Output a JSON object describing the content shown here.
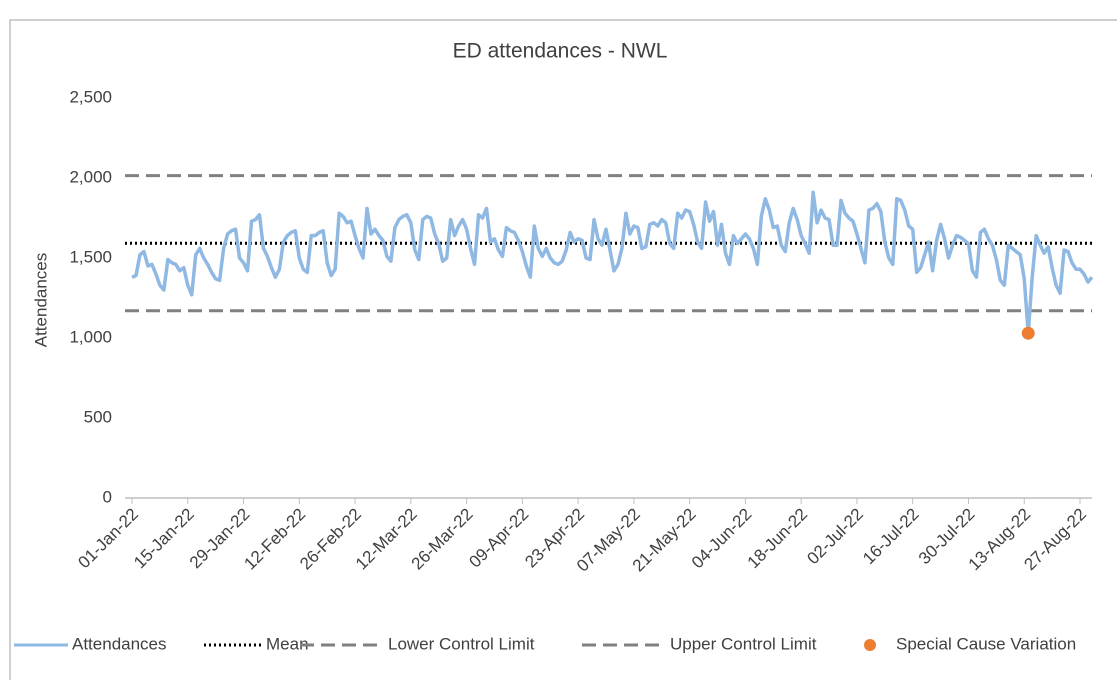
{
  "chart_data": {
    "type": "line",
    "title": "ED attendances - NWL",
    "y_label": "Attendances",
    "ylim": [
      0,
      2500
    ],
    "yticks": [
      0,
      500,
      {
        "value": 1000,
        "label": "1,000"
      },
      {
        "value": 1500,
        "label": "1,500"
      },
      {
        "value": 2000,
        "label": "2,000"
      },
      {
        "value": 2500,
        "label": "2,500"
      }
    ],
    "categories": [
      "01-Jan-22",
      null,
      null,
      null,
      null,
      null,
      null,
      null,
      null,
      null,
      null,
      null,
      null,
      null,
      "15-Jan-22",
      null,
      null,
      null,
      null,
      null,
      null,
      null,
      null,
      null,
      null,
      null,
      null,
      null,
      "29-Jan-22",
      null,
      null,
      null,
      null,
      null,
      null,
      null,
      null,
      null,
      null,
      null,
      null,
      null,
      "12-Feb-22",
      null,
      null,
      null,
      null,
      null,
      null,
      null,
      null,
      null,
      null,
      null,
      null,
      null,
      "26-Feb-22",
      null,
      null,
      null,
      null,
      null,
      null,
      null,
      null,
      null,
      null,
      null,
      null,
      null,
      "12-Mar-22",
      null,
      null,
      null,
      null,
      null,
      null,
      null,
      null,
      null,
      null,
      null,
      null,
      null,
      "26-Mar-22",
      null,
      null,
      null,
      null,
      null,
      null,
      null,
      null,
      null,
      null,
      null,
      null,
      null,
      "09-Apr-22",
      null,
      null,
      null,
      null,
      null,
      null,
      null,
      null,
      null,
      null,
      null,
      null,
      null,
      "23-Apr-22",
      null,
      null,
      null,
      null,
      null,
      null,
      null,
      null,
      null,
      null,
      null,
      null,
      null,
      "07-May-22",
      null,
      null,
      null,
      null,
      null,
      null,
      null,
      null,
      null,
      null,
      null,
      null,
      null,
      "21-May-22",
      null,
      null,
      null,
      null,
      null,
      null,
      null,
      null,
      null,
      null,
      null,
      null,
      null,
      "04-Jun-22",
      null,
      null,
      null,
      null,
      null,
      null,
      null,
      null,
      null,
      null,
      null,
      null,
      null,
      "18-Jun-22",
      null,
      null,
      null,
      null,
      null,
      null,
      null,
      null,
      null,
      null,
      null,
      null,
      null,
      "02-Jul-22",
      null,
      null,
      null,
      null,
      null,
      null,
      null,
      null,
      null,
      null,
      null,
      null,
      null,
      "16-Jul-22",
      null,
      null,
      null,
      null,
      null,
      null,
      null,
      null,
      null,
      null,
      null,
      null,
      null,
      "30-Jul-22",
      null,
      null,
      null,
      null,
      null,
      null,
      null,
      null,
      null,
      null,
      null,
      null,
      null,
      "13-Aug-22",
      null,
      null,
      null,
      null,
      null,
      null,
      null,
      null,
      null,
      null,
      null,
      null,
      null,
      "27-Aug-22",
      null,
      null,
      null
    ],
    "series": [
      {
        "name": "Attendances",
        "kind": "line",
        "color": "#8fb8e3",
        "values": [
          1380,
          1390,
          1520,
          1540,
          1450,
          1460,
          1400,
          1330,
          1300,
          1490,
          1470,
          1460,
          1420,
          1440,
          1330,
          1270,
          1520,
          1560,
          1500,
          1460,
          1410,
          1370,
          1360,
          1560,
          1650,
          1670,
          1680,
          1500,
          1470,
          1420,
          1730,
          1740,
          1770,
          1560,
          1510,
          1440,
          1380,
          1430,
          1600,
          1640,
          1660,
          1670,
          1500,
          1430,
          1410,
          1640,
          1640,
          1660,
          1670,
          1470,
          1390,
          1430,
          1780,
          1760,
          1720,
          1730,
          1640,
          1560,
          1500,
          1810,
          1650,
          1680,
          1640,
          1610,
          1510,
          1480,
          1690,
          1740,
          1760,
          1770,
          1720,
          1550,
          1490,
          1740,
          1760,
          1750,
          1650,
          1590,
          1480,
          1500,
          1740,
          1640,
          1700,
          1740,
          1680,
          1560,
          1460,
          1770,
          1750,
          1810,
          1600,
          1620,
          1550,
          1510,
          1690,
          1670,
          1660,
          1610,
          1540,
          1450,
          1380,
          1700,
          1560,
          1510,
          1560,
          1500,
          1470,
          1460,
          1480,
          1550,
          1660,
          1600,
          1620,
          1610,
          1500,
          1490,
          1740,
          1620,
          1580,
          1680,
          1550,
          1420,
          1460,
          1560,
          1780,
          1650,
          1700,
          1690,
          1560,
          1570,
          1710,
          1720,
          1700,
          1740,
          1720,
          1590,
          1560,
          1780,
          1750,
          1800,
          1790,
          1710,
          1600,
          1560,
          1850,
          1730,
          1790,
          1580,
          1710,
          1530,
          1460,
          1640,
          1590,
          1620,
          1650,
          1620,
          1560,
          1460,
          1760,
          1870,
          1800,
          1690,
          1700,
          1580,
          1540,
          1720,
          1810,
          1740,
          1640,
          1590,
          1530,
          1910,
          1720,
          1800,
          1750,
          1740,
          1580,
          1580,
          1860,
          1780,
          1750,
          1730,
          1650,
          1560,
          1470,
          1800,
          1810,
          1840,
          1790,
          1600,
          1500,
          1460,
          1870,
          1860,
          1800,
          1700,
          1680,
          1410,
          1440,
          1520,
          1600,
          1420,
          1610,
          1710,
          1620,
          1500,
          1580,
          1640,
          1630,
          1610,
          1590,
          1420,
          1380,
          1660,
          1680,
          1620,
          1580,
          1490,
          1360,
          1330,
          1580,
          1560,
          1540,
          1520,
          1370,
          1030,
          1380,
          1640,
          1580,
          1530,
          1570,
          1440,
          1330,
          1280,
          1550,
          1540,
          1470,
          1430,
          1430,
          1400,
          1350,
          1380
        ]
      },
      {
        "name": "Mean",
        "kind": "reference",
        "style": "dotted",
        "color": "#000000",
        "value": 1592
      },
      {
        "name": "Lower Control Limit",
        "kind": "reference",
        "style": "dashed",
        "color": "#808080",
        "value": 1170
      },
      {
        "name": "Upper Control Limit",
        "kind": "reference",
        "style": "dashed",
        "color": "#808080",
        "value": 2015
      },
      {
        "name": "Special Cause Variation",
        "kind": "point",
        "color": "#ed7d31",
        "values": [
          null,
          null,
          null,
          null,
          null,
          null,
          null,
          null,
          null,
          null,
          null,
          null,
          null,
          null,
          null,
          null,
          null,
          null,
          null,
          null,
          null,
          null,
          null,
          null,
          null,
          null,
          null,
          null,
          null,
          null,
          null,
          null,
          null,
          null,
          null,
          null,
          null,
          null,
          null,
          null,
          null,
          null,
          null,
          null,
          null,
          null,
          null,
          null,
          null,
          null,
          null,
          null,
          null,
          null,
          null,
          null,
          null,
          null,
          null,
          null,
          null,
          null,
          null,
          null,
          null,
          null,
          null,
          null,
          null,
          null,
          null,
          null,
          null,
          null,
          null,
          null,
          null,
          null,
          null,
          null,
          null,
          null,
          null,
          null,
          null,
          null,
          null,
          null,
          null,
          null,
          null,
          null,
          null,
          null,
          null,
          null,
          null,
          null,
          null,
          null,
          null,
          null,
          null,
          null,
          null,
          null,
          null,
          null,
          null,
          null,
          null,
          null,
          null,
          null,
          null,
          null,
          null,
          null,
          null,
          null,
          null,
          null,
          null,
          null,
          null,
          null,
          null,
          null,
          null,
          null,
          null,
          null,
          null,
          null,
          null,
          null,
          null,
          null,
          null,
          null,
          null,
          null,
          null,
          null,
          null,
          null,
          null,
          null,
          null,
          null,
          null,
          null,
          null,
          null,
          null,
          null,
          null,
          null,
          null,
          null,
          null,
          null,
          null,
          null,
          null,
          null,
          null,
          null,
          null,
          null,
          null,
          null,
          null,
          null,
          null,
          null,
          null,
          null,
          null,
          null,
          null,
          null,
          null,
          null,
          null,
          null,
          null,
          null,
          null,
          null,
          null,
          null,
          null,
          null,
          null,
          null,
          null,
          null,
          null,
          null,
          null,
          null,
          null,
          null,
          null,
          null,
          null,
          null,
          null,
          null,
          null,
          null,
          null,
          null,
          null,
          null,
          null,
          null,
          null,
          null,
          null,
          null,
          null,
          null,
          null,
          1030,
          null,
          null,
          null,
          null,
          null,
          null,
          null,
          null,
          null,
          null,
          null,
          null,
          null,
          null,
          null,
          null
        ]
      }
    ]
  }
}
